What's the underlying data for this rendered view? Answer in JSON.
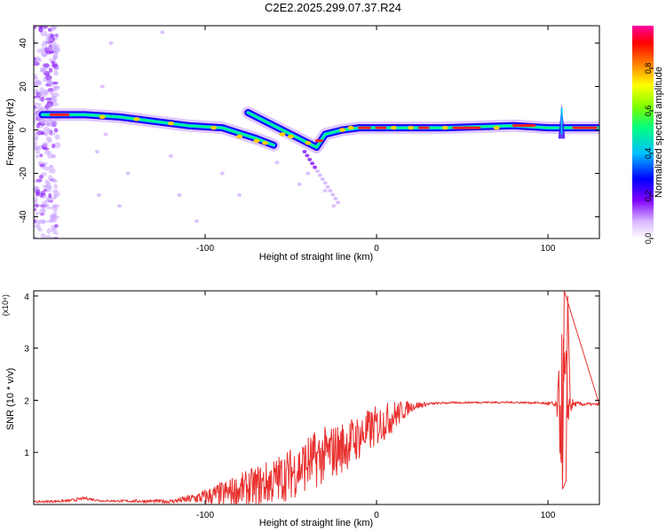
{
  "title": "C2E2.2025.299.07.37.R24",
  "chart_data": [
    {
      "type": "heatmap",
      "xlabel": "Height of straight line (km)",
      "ylabel": "Frequency (Hz)",
      "xlim": [
        -200,
        130
      ],
      "ylim": [
        -50,
        48
      ],
      "xticks": [
        -100,
        0,
        100
      ],
      "yticks": [
        -40,
        -20,
        0,
        20,
        40
      ],
      "colorbar": {
        "label": "Normalized spectral amplitude",
        "range": [
          0.0,
          1.0
        ],
        "ticks": [
          "0.0",
          "0.2",
          "0.4",
          "0.6",
          "0.8"
        ],
        "colors": [
          "#ffffff",
          "#d9b8ff",
          "#8000ff",
          "#0000ff",
          "#00c0ff",
          "#00ff80",
          "#80ff00",
          "#ffff00",
          "#ff8000",
          "#ff0000",
          "#ff00a0"
        ]
      },
      "ridges": [
        {
          "name": "",
          "points": [
            [
              -195,
              7
            ],
            [
              -170,
              7
            ],
            [
              -150,
              6
            ],
            [
              -130,
              4
            ],
            [
              -110,
              2
            ],
            [
              -90,
              1
            ],
            [
              -70,
              -4
            ],
            [
              -60,
              -7
            ]
          ]
        },
        {
          "name": "",
          "points": [
            [
              -75,
              8
            ],
            [
              -60,
              2
            ],
            [
              -45,
              -4
            ],
            [
              -35,
              -8
            ],
            [
              -30,
              -2
            ],
            [
              -20,
              0
            ],
            [
              -10,
              1
            ],
            [
              0,
              1
            ],
            [
              40,
              1
            ],
            [
              80,
              2
            ],
            [
              100,
              1
            ],
            [
              130,
              1
            ]
          ]
        }
      ]
    },
    {
      "type": "line",
      "xlabel": "Height of straight line (km)",
      "ylabel": "SNR (10 * v/v)",
      "y_multiplier": "(x10⁴)",
      "xlim": [
        -200,
        130
      ],
      "ylim": [
        0,
        4.1
      ],
      "xticks": [
        -100,
        0,
        100
      ],
      "yticks": [
        1,
        2,
        3,
        4
      ],
      "color": "#e8312f",
      "envelope": {
        "x": [
          -200,
          -180,
          -170,
          -160,
          -120,
          -110,
          -100,
          -90,
          -80,
          -70,
          -60,
          -50,
          -40,
          -30,
          -20,
          -10,
          0,
          10,
          20,
          30,
          40,
          60,
          80,
          95,
          102,
          105,
          108,
          110,
          112,
          115,
          130
        ],
        "y": [
          0.05,
          0.07,
          0.12,
          0.07,
          0.06,
          0.1,
          0.15,
          0.2,
          0.28,
          0.35,
          0.45,
          0.6,
          0.8,
          0.95,
          1.1,
          1.3,
          1.5,
          1.7,
          1.88,
          1.93,
          1.95,
          1.96,
          1.96,
          1.95,
          1.93,
          1.88,
          1.85,
          2.0,
          1.9,
          1.93,
          1.92
        ],
        "noise_amplitude": [
          0.02,
          0.03,
          0.03,
          0.02,
          0.04,
          0.08,
          0.15,
          0.25,
          0.3,
          0.4,
          0.45,
          0.5,
          0.55,
          0.55,
          0.5,
          0.45,
          0.4,
          0.3,
          0.1,
          0.03,
          0.02,
          0.02,
          0.02,
          0.02,
          0.05,
          0.1,
          1.5,
          1.6,
          0.3,
          0.05,
          0.02
        ]
      },
      "spikes": [
        {
          "x": 109.5,
          "y": 4.1
        },
        {
          "x": 108.5,
          "y": 0.3
        },
        {
          "x": 110.5,
          "y": 0.45
        },
        {
          "x": 111.5,
          "y": 4.0
        }
      ]
    }
  ]
}
